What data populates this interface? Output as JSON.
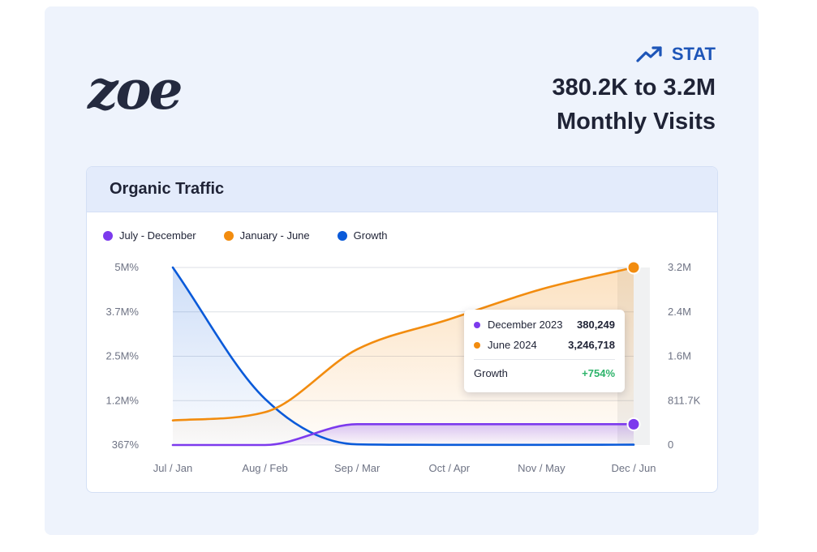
{
  "brand": {
    "logo_text": "zoe"
  },
  "stat": {
    "tag": "STAT",
    "line1": "380.2K to 3.2M",
    "line2": "Monthly Visits"
  },
  "colors": {
    "purple": "#7c3aed",
    "orange": "#f28c0f",
    "blue": "#0a5ad9",
    "green": "#2db36a"
  },
  "panel": {
    "title": "Organic Traffic"
  },
  "chart_data": {
    "type": "line",
    "categories": [
      "Jul / Jan",
      "Aug / Feb",
      "Sep / Mar",
      "Oct / Apr",
      "Nov / May",
      "Dec / Jun"
    ],
    "left_axis": {
      "ticks": [
        "5M%",
        "3.7M%",
        "2.5M%",
        "1.2M%",
        "367%"
      ],
      "ylim": [
        367,
        5000000
      ]
    },
    "right_axis": {
      "ticks": [
        "3.2M",
        "2.4M",
        "1.6M",
        "811.7K",
        "0"
      ],
      "ylim": [
        0,
        3246718
      ]
    },
    "series": [
      {
        "name": "July - December",
        "axis": "right",
        "color": "#7c3aed",
        "values": [
          0,
          0,
          380249,
          380249,
          380249,
          380249
        ]
      },
      {
        "name": "January - June",
        "axis": "right",
        "color": "#f28c0f",
        "values": [
          450000,
          600000,
          1750000,
          2300000,
          2850000,
          3246718
        ]
      },
      {
        "name": "Growth",
        "axis": "left",
        "color": "#0a5ad9",
        "values": [
          5000000,
          1300000,
          20000,
          5000,
          5000,
          10000
        ]
      }
    ],
    "legend": [
      "July - December",
      "January - June",
      "Growth"
    ],
    "tooltip": {
      "rows": [
        {
          "label": "December 2023",
          "value": "380,249"
        },
        {
          "label": "June 2024",
          "value": "3,246,718"
        }
      ],
      "growth_label": "Growth",
      "growth_value": "+754%"
    }
  }
}
